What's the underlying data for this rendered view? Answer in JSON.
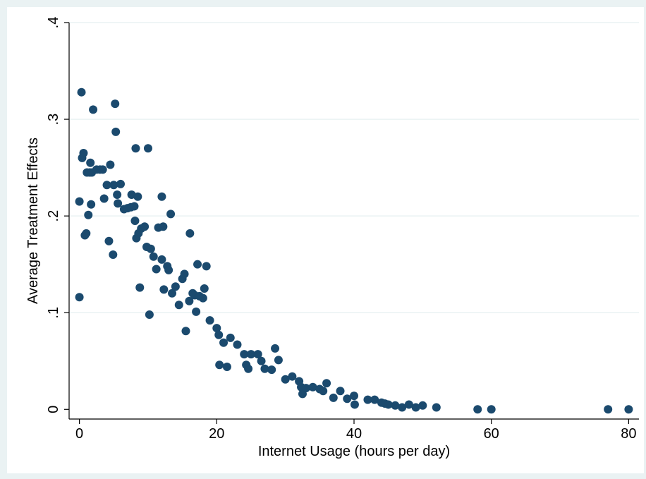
{
  "chart_data": {
    "type": "scatter",
    "title": "",
    "xlabel": "Internet Usage (hours per day)",
    "ylabel": "Average Treatment Effects",
    "xlim": [
      -1.5,
      81.5
    ],
    "ylim": [
      -0.01,
      0.4
    ],
    "xticks": [
      0,
      20,
      40,
      60,
      80
    ],
    "xtick_labels": [
      "0",
      "20",
      "40",
      "60",
      "80"
    ],
    "yticks": [
      0,
      0.1,
      0.2,
      0.3,
      0.4
    ],
    "ytick_labels": [
      "0",
      ".1",
      ".2",
      ".3",
      ".4"
    ],
    "grid": true,
    "legend": "none",
    "colors": {
      "background": "#eaf2f3",
      "plot_area": "#ffffff",
      "marker": "#1b4a6e",
      "grid": "#eaf2f3"
    },
    "series": [
      {
        "points": [
          [
            0.0,
            0.215
          ],
          [
            0.0,
            0.116
          ],
          [
            0.3,
            0.328
          ],
          [
            0.4,
            0.26
          ],
          [
            0.6,
            0.265
          ],
          [
            0.8,
            0.18
          ],
          [
            1.0,
            0.182
          ],
          [
            1.1,
            0.245
          ],
          [
            1.3,
            0.201
          ],
          [
            1.5,
            0.245
          ],
          [
            1.6,
            0.255
          ],
          [
            1.7,
            0.212
          ],
          [
            1.8,
            0.245
          ],
          [
            2.0,
            0.31
          ],
          [
            2.5,
            0.248
          ],
          [
            3.0,
            0.248
          ],
          [
            3.4,
            0.248
          ],
          [
            3.6,
            0.218
          ],
          [
            4.0,
            0.232
          ],
          [
            4.3,
            0.174
          ],
          [
            4.5,
            0.253
          ],
          [
            4.9,
            0.16
          ],
          [
            5.0,
            0.232
          ],
          [
            5.2,
            0.316
          ],
          [
            5.3,
            0.287
          ],
          [
            5.5,
            0.222
          ],
          [
            5.6,
            0.213
          ],
          [
            6.0,
            0.233
          ],
          [
            6.5,
            0.207
          ],
          [
            7.0,
            0.208
          ],
          [
            7.5,
            0.209
          ],
          [
            7.6,
            0.222
          ],
          [
            8.0,
            0.21
          ],
          [
            8.1,
            0.195
          ],
          [
            8.2,
            0.27
          ],
          [
            8.3,
            0.177
          ],
          [
            8.5,
            0.22
          ],
          [
            8.6,
            0.182
          ],
          [
            8.8,
            0.126
          ],
          [
            9.0,
            0.187
          ],
          [
            9.5,
            0.189
          ],
          [
            9.8,
            0.168
          ],
          [
            10.0,
            0.27
          ],
          [
            10.2,
            0.098
          ],
          [
            10.4,
            0.166
          ],
          [
            10.8,
            0.158
          ],
          [
            11.2,
            0.145
          ],
          [
            11.5,
            0.188
          ],
          [
            12.0,
            0.22
          ],
          [
            12.0,
            0.155
          ],
          [
            12.2,
            0.189
          ],
          [
            12.3,
            0.124
          ],
          [
            12.8,
            0.148
          ],
          [
            13.0,
            0.144
          ],
          [
            13.3,
            0.202
          ],
          [
            13.5,
            0.12
          ],
          [
            14.0,
            0.127
          ],
          [
            14.5,
            0.108
          ],
          [
            15.0,
            0.135
          ],
          [
            15.3,
            0.14
          ],
          [
            15.5,
            0.081
          ],
          [
            16.0,
            0.112
          ],
          [
            16.1,
            0.182
          ],
          [
            16.5,
            0.12
          ],
          [
            16.8,
            0.118
          ],
          [
            17.0,
            0.101
          ],
          [
            17.2,
            0.15
          ],
          [
            17.5,
            0.117
          ],
          [
            18.0,
            0.115
          ],
          [
            18.2,
            0.125
          ],
          [
            18.5,
            0.148
          ],
          [
            19.0,
            0.092
          ],
          [
            20.0,
            0.084
          ],
          [
            20.3,
            0.077
          ],
          [
            20.4,
            0.046
          ],
          [
            21.0,
            0.069
          ],
          [
            21.5,
            0.044
          ],
          [
            22.0,
            0.074
          ],
          [
            23.0,
            0.067
          ],
          [
            24.0,
            0.057
          ],
          [
            24.3,
            0.046
          ],
          [
            24.6,
            0.042
          ],
          [
            25.0,
            0.057
          ],
          [
            26.0,
            0.057
          ],
          [
            26.5,
            0.05
          ],
          [
            27.0,
            0.042
          ],
          [
            28.0,
            0.041
          ],
          [
            28.5,
            0.063
          ],
          [
            29.0,
            0.051
          ],
          [
            30.0,
            0.031
          ],
          [
            31.0,
            0.034
          ],
          [
            32.0,
            0.029
          ],
          [
            32.3,
            0.023
          ],
          [
            32.5,
            0.016
          ],
          [
            33.0,
            0.022
          ],
          [
            34.0,
            0.023
          ],
          [
            35.0,
            0.021
          ],
          [
            35.5,
            0.019
          ],
          [
            36.0,
            0.027
          ],
          [
            37.0,
            0.012
          ],
          [
            38.0,
            0.019
          ],
          [
            39.0,
            0.011
          ],
          [
            40.0,
            0.014
          ],
          [
            40.1,
            0.005
          ],
          [
            42.0,
            0.01
          ],
          [
            43.0,
            0.01
          ],
          [
            44.0,
            0.007
          ],
          [
            44.5,
            0.006
          ],
          [
            45.0,
            0.005
          ],
          [
            46.0,
            0.004
          ],
          [
            47.0,
            0.002
          ],
          [
            48.0,
            0.005
          ],
          [
            49.0,
            0.002
          ],
          [
            50.0,
            0.004
          ],
          [
            52.0,
            0.002
          ],
          [
            58.0,
            0.0
          ],
          [
            60.0,
            0.0
          ],
          [
            77.0,
            0.0
          ],
          [
            80.0,
            0.0
          ]
        ]
      }
    ]
  }
}
